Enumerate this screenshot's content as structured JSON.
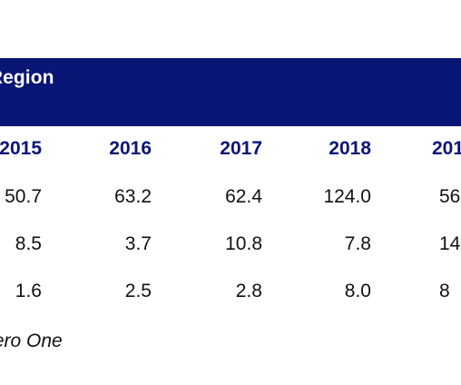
{
  "table": {
    "title": "ent Per Region",
    "headers": [
      "2015",
      "2016",
      "2017",
      "2018",
      "201"
    ],
    "rows": [
      [
        "50.7",
        "63.2",
        "62.4",
        "124.0",
        "56"
      ],
      [
        "8.5",
        "3.7",
        "10.8",
        "7.8",
        "14"
      ],
      [
        "1.6",
        "2.5",
        "2.8",
        "8.0",
        "8"
      ]
    ],
    "source": "G, Zero One"
  },
  "colors": {
    "header_band": "#0a1675",
    "header_text": "#0a1675"
  }
}
